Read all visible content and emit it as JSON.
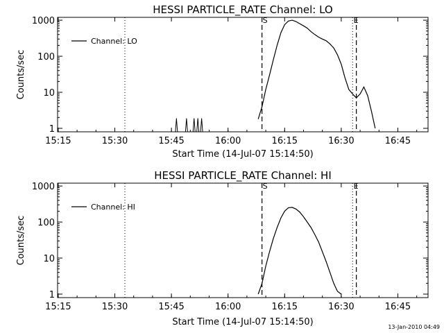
{
  "footer": {
    "timestamp": "13-Jan-2010 04:49"
  },
  "chart_data": [
    {
      "type": "line",
      "title": "HESSI PARTICLE_RATE Channel: LO",
      "xlabel": "Start Time (14-Jul-07 15:14:50)",
      "ylabel": "Counts/sec",
      "x_ticks": [
        "15:15",
        "15:30",
        "15:45",
        "16:00",
        "16:15",
        "16:30",
        "16:45"
      ],
      "y_ticks": [
        "1",
        "10",
        "100",
        "1000"
      ],
      "y_scale": "log",
      "xlim": [
        "15:14:50",
        "16:53:00"
      ],
      "ylim": [
        0.8,
        1200
      ],
      "legend": {
        "label": "Channel: LO",
        "placement": "top-left"
      },
      "markers": {
        "dotted": [
          "15:32:40",
          "16:33:00",
          "16:53:00"
        ],
        "dashed": [
          "16:09:00",
          "16:34:00"
        ],
        "S": "16:09:00",
        "E": "16:34:00"
      },
      "spikes": [
        "15:46:20",
        "15:49:00",
        "15:51:00",
        "15:52:00",
        "15:53:00"
      ],
      "series": [
        {
          "name": "Channel: LO",
          "points": [
            [
              "16:08:00",
              1.8
            ],
            [
              "16:09:00",
              4
            ],
            [
              "16:10:00",
              12
            ],
            [
              "16:11:00",
              30
            ],
            [
              "16:12:00",
              80
            ],
            [
              "16:13:00",
              200
            ],
            [
              "16:14:00",
              450
            ],
            [
              "16:15:00",
              750
            ],
            [
              "16:16:00",
              950
            ],
            [
              "16:17:00",
              1000
            ],
            [
              "16:18:00",
              920
            ],
            [
              "16:19:00",
              800
            ],
            [
              "16:20:00",
              700
            ],
            [
              "16:21:00",
              600
            ],
            [
              "16:22:00",
              480
            ],
            [
              "16:23:00",
              400
            ],
            [
              "16:24:00",
              340
            ],
            [
              "16:25:00",
              300
            ],
            [
              "16:26:00",
              270
            ],
            [
              "16:27:00",
              220
            ],
            [
              "16:28:00",
              170
            ],
            [
              "16:29:00",
              110
            ],
            [
              "16:30:00",
              60
            ],
            [
              "16:31:00",
              25
            ],
            [
              "16:32:00",
              12
            ],
            [
              "16:33:00",
              9
            ],
            [
              "16:34:00",
              7
            ],
            [
              "16:35:00",
              9
            ],
            [
              "16:36:00",
              14
            ],
            [
              "16:37:00",
              8
            ],
            [
              "16:38:00",
              3
            ],
            [
              "16:39:00",
              1
            ]
          ]
        }
      ]
    },
    {
      "type": "line",
      "title": "HESSI PARTICLE_RATE Channel: HI",
      "xlabel": "Start Time (14-Jul-07 15:14:50)",
      "ylabel": "Counts/sec",
      "x_ticks": [
        "15:15",
        "15:30",
        "15:45",
        "16:00",
        "16:15",
        "16:30",
        "16:45"
      ],
      "y_ticks": [
        "1",
        "10",
        "100",
        "1000"
      ],
      "y_scale": "log",
      "xlim": [
        "15:14:50",
        "16:53:00"
      ],
      "ylim": [
        0.8,
        1200
      ],
      "legend": {
        "label": "Channel: HI",
        "placement": "top-left"
      },
      "markers": {
        "dotted": [
          "15:32:40",
          "16:33:00",
          "16:53:00"
        ],
        "dashed": [
          "16:09:00",
          "16:34:00"
        ],
        "S": "16:09:00",
        "E": "16:34:00"
      },
      "spikes": [],
      "series": [
        {
          "name": "Channel: HI",
          "points": [
            [
              "16:08:00",
              1
            ],
            [
              "16:09:00",
              2
            ],
            [
              "16:10:00",
              6
            ],
            [
              "16:11:00",
              15
            ],
            [
              "16:12:00",
              35
            ],
            [
              "16:13:00",
              70
            ],
            [
              "16:14:00",
              130
            ],
            [
              "16:15:00",
              200
            ],
            [
              "16:16:00",
              250
            ],
            [
              "16:17:00",
              255
            ],
            [
              "16:18:00",
              230
            ],
            [
              "16:19:00",
              190
            ],
            [
              "16:20:00",
              140
            ],
            [
              "16:21:00",
              100
            ],
            [
              "16:22:00",
              70
            ],
            [
              "16:23:00",
              45
            ],
            [
              "16:24:00",
              28
            ],
            [
              "16:25:00",
              15
            ],
            [
              "16:26:00",
              8
            ],
            [
              "16:27:00",
              4
            ],
            [
              "16:28:00",
              2
            ],
            [
              "16:29:00",
              1.2
            ],
            [
              "16:30:00",
              1
            ]
          ]
        }
      ]
    }
  ]
}
